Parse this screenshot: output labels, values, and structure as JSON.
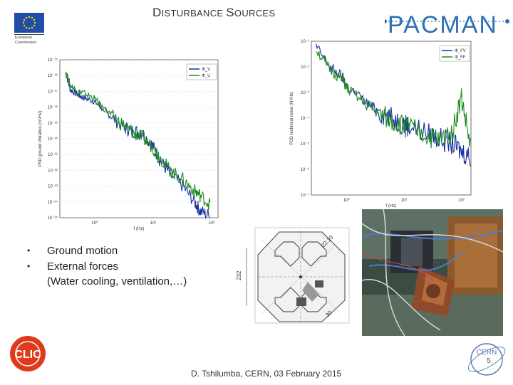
{
  "title": {
    "first_large": "D",
    "first_rest": "ISTURBANCE ",
    "second_large": "S",
    "second_rest": "OURCES"
  },
  "eu_logo": {
    "line1": "European",
    "line2": "Commission"
  },
  "pacman_logo": {
    "text": "PACMAN",
    "color": "#2e6fb5"
  },
  "bullets": {
    "item1": "Ground motion",
    "item2": "External forces",
    "item2_continuation": "(Water cooling, ventilation,…)"
  },
  "footer": {
    "text": "D. Tshilumba, CERN,  03 February 2015",
    "page_number": "5"
  },
  "chart_data": [
    {
      "type": "line",
      "xlabel": "f (Hz)",
      "ylabel": "PSD ground vibration (m²/Hz)",
      "x_ticks": [
        "10⁰",
        "10¹",
        "10²"
      ],
      "y_ticks": [
        "10⁻¹⁵",
        "10⁻¹⁶",
        "10⁻¹⁷",
        "10⁻¹⁸",
        "10⁻¹⁹",
        "10⁻²⁰",
        "10⁻²¹",
        "10⁻²²",
        "10⁻²³",
        "10⁻²⁴",
        "10⁻²⁵"
      ],
      "legend": [
        "Φ_V",
        "Φ_U"
      ],
      "legend_position": "top-right",
      "grid": true,
      "series": [
        {
          "name": "Φ_V",
          "color": "#1a2fa0",
          "x": [
            0.5,
            0.6,
            0.8,
            1.0,
            1.5,
            2,
            3,
            5,
            7,
            10,
            15,
            20,
            30,
            50,
            80,
            100,
            150
          ],
          "y": [
            -15.8,
            -16.9,
            -17.2,
            -17.4,
            -17.6,
            -18.0,
            -18.6,
            -19.3,
            -19.5,
            -19.6,
            -20.4,
            -21.3,
            -22.2,
            -23.0,
            -24.0,
            -24.6,
            -24.9
          ]
        },
        {
          "name": "Φ_U",
          "color": "#1f8a1f",
          "x": [
            0.5,
            0.6,
            0.8,
            1.0,
            1.5,
            2,
            3,
            5,
            7,
            10,
            15,
            20,
            30,
            50,
            80,
            100,
            150
          ],
          "y": [
            -15.7,
            -16.6,
            -17.0,
            -17.1,
            -17.4,
            -17.9,
            -18.5,
            -19.2,
            -19.6,
            -19.9,
            -20.5,
            -21.1,
            -22.0,
            -22.6,
            -23.3,
            -23.6,
            -24.2
          ]
        }
      ]
    },
    {
      "type": "line",
      "xlabel": "f (Hz)",
      "ylabel": "PSD technical noise (N²/Hz)",
      "x_ticks": [
        "10⁰",
        "10¹",
        "10²"
      ],
      "y_ticks": [
        "10⁻¹",
        "10⁻²",
        "10⁻³",
        "10⁻⁴",
        "10⁻⁵",
        "10⁻⁶",
        "10⁻⁷"
      ],
      "legend": [
        "Φ_FV",
        "Φ_FF"
      ],
      "legend_position": "top-right",
      "grid": false,
      "series": [
        {
          "name": "Φ_FV",
          "color": "#1a2fa0",
          "x": [
            0.3,
            0.5,
            0.8,
            1,
            2,
            3,
            5,
            8,
            10,
            20,
            30,
            50,
            70,
            100
          ],
          "y": [
            -1.2,
            -2.0,
            -2.4,
            -2.8,
            -3.4,
            -3.7,
            -4.0,
            -4.2,
            -4.3,
            -4.6,
            -4.8,
            -5.0,
            -5.3,
            -5.5
          ]
        },
        {
          "name": "Φ_FF",
          "color": "#1f8a1f",
          "x": [
            0.3,
            0.5,
            0.8,
            1,
            2,
            3,
            5,
            8,
            10,
            20,
            30,
            50,
            70,
            100
          ],
          "y": [
            -1.3,
            -2.1,
            -2.5,
            -2.9,
            -3.5,
            -3.8,
            -4.1,
            -4.3,
            -4.4,
            -4.7,
            -4.9,
            -4.5,
            -3.2,
            -5.2
          ]
        }
      ]
    }
  ],
  "drawing": {
    "dim_vertical": "232",
    "dim_diagonal_top": "22.10",
    "dim_diagonal_bottom": "30"
  },
  "clic_logo": {
    "text": "CLIC",
    "color": "#e03a1c"
  },
  "cern_logo": {
    "text": "CERN",
    "color": "#5577aa"
  }
}
